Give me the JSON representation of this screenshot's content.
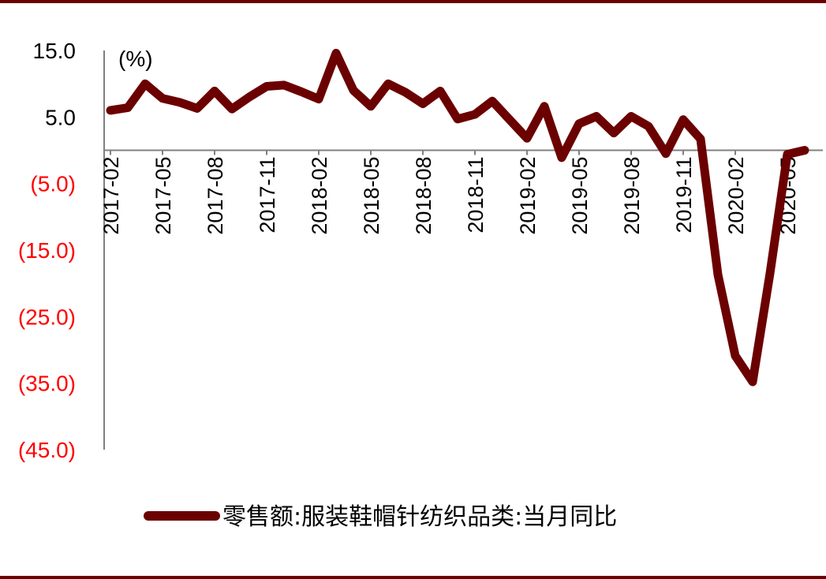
{
  "chart_data": {
    "type": "line",
    "unit_label": "(%)",
    "y_ticks": [
      15.0,
      5.0,
      -5.0,
      -15.0,
      -25.0,
      -35.0,
      -45.0
    ],
    "y_tick_labels": [
      "15.0",
      "5.0",
      "(5.0)",
      "(15.0)",
      "(25.0)",
      "(35.0)",
      "(45.0)"
    ],
    "ylim": [
      -45.0,
      15.0
    ],
    "x_tick_labels": [
      "2017-02",
      "2017-05",
      "2017-08",
      "2017-11",
      "2018-02",
      "2018-05",
      "2018-08",
      "2018-11",
      "2019-02",
      "2019-05",
      "2019-08",
      "2019-11",
      "2020-02",
      "2020-05"
    ],
    "x": [
      "2017-02",
      "2017-03",
      "2017-04",
      "2017-05",
      "2017-06",
      "2017-07",
      "2017-08",
      "2017-09",
      "2017-10",
      "2017-11",
      "2017-12",
      "2018-01",
      "2018-02",
      "2018-03",
      "2018-04",
      "2018-05",
      "2018-06",
      "2018-07",
      "2018-08",
      "2018-09",
      "2018-10",
      "2018-11",
      "2018-12",
      "2019-01",
      "2019-02",
      "2019-03",
      "2019-04",
      "2019-05",
      "2019-06",
      "2019-07",
      "2019-08",
      "2019-09",
      "2019-10",
      "2019-11",
      "2019-12",
      "2020-01",
      "2020-02",
      "2020-03",
      "2020-04",
      "2020-05",
      "2020-06"
    ],
    "series": [
      {
        "name": "零售额:服装鞋帽针纺织品类:当月同比",
        "color": "#6b0000",
        "values": [
          6.0,
          6.4,
          10.0,
          7.8,
          7.2,
          6.3,
          8.9,
          6.2,
          8.0,
          9.6,
          9.8,
          8.8,
          7.7,
          14.6,
          9.0,
          6.6,
          10.0,
          8.7,
          7.0,
          8.9,
          4.7,
          5.4,
          7.4,
          4.6,
          1.8,
          6.6,
          -1.1,
          4.0,
          5.1,
          2.6,
          5.1,
          3.6,
          -0.5,
          4.6,
          1.7,
          -18.7,
          -30.9,
          -34.8,
          -18.5,
          -0.6,
          0.0
        ]
      }
    ]
  },
  "legend": {
    "label": "零售额:服装鞋帽针纺织品类:当月同比"
  },
  "colors": {
    "series": "#6b0000",
    "negative_tick": "#ff0000",
    "positive_tick": "#000000",
    "axis": "#808080",
    "rule": "#6b0000"
  }
}
